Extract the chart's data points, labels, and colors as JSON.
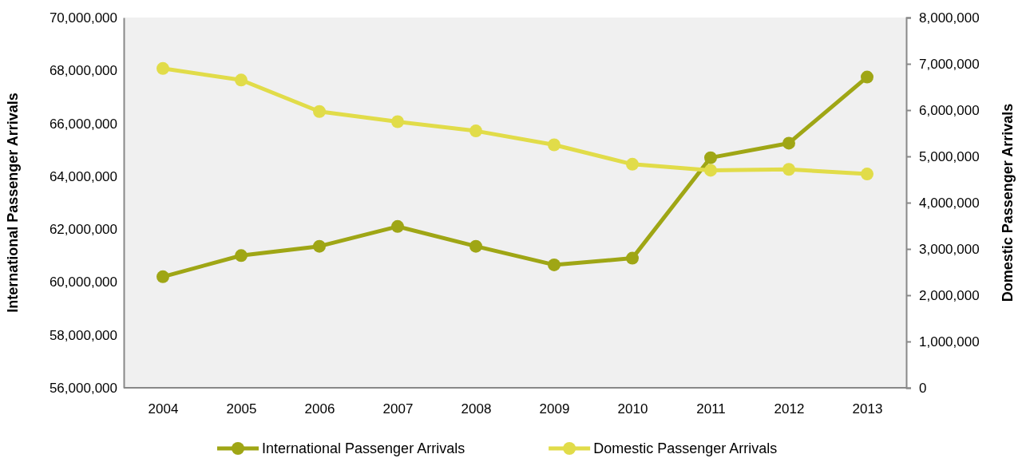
{
  "chart_data": {
    "type": "line",
    "categories": [
      "2004",
      "2005",
      "2006",
      "2007",
      "2008",
      "2009",
      "2010",
      "2011",
      "2012",
      "2013"
    ],
    "ylabel": "International Passenger Arrivals",
    "y2label": "Domestic Passenger Arrivals",
    "series": [
      {
        "name": "International Passenger Arrivals",
        "color": "#9fa615",
        "values": [
          60200000,
          61000000,
          61350000,
          62100000,
          61350000,
          60650000,
          60900000,
          64700000,
          65250000,
          67750000
        ]
      },
      {
        "name": "Domestic Passenger Arrivals",
        "color": "#e1dc49",
        "axis": "y2",
        "values": [
          6900000,
          6650000,
          5970000,
          5750000,
          5550000,
          5250000,
          4830000,
          4700000,
          4720000,
          4620000
        ]
      }
    ],
    "ylim": [
      56000000,
      70000000
    ],
    "yticks": [
      {
        "value": 56000000,
        "label": "56,000,000"
      },
      {
        "value": 58000000,
        "label": "58,000,000"
      },
      {
        "value": 60000000,
        "label": "60,000,000"
      },
      {
        "value": 62000000,
        "label": "62,000,000"
      },
      {
        "value": 64000000,
        "label": "64,000,000"
      },
      {
        "value": 66000000,
        "label": "66,000,000"
      },
      {
        "value": 68000000,
        "label": "68,000,000"
      },
      {
        "value": 70000000,
        "label": "70,000,000"
      }
    ],
    "y2lim": [
      0,
      8000000
    ],
    "y2ticks": [
      0,
      {
        "value": 1000000,
        "label": "1,000,000"
      },
      {
        "value": 2000000,
        "label": "2,000,000"
      },
      {
        "value": 3000000,
        "label": "3,000,000"
      },
      {
        "value": 4000000,
        "label": "4,000,000"
      },
      {
        "value": 5000000,
        "label": "5,000,000"
      },
      {
        "value": 6000000,
        "label": "6,000,000"
      },
      {
        "value": 7000000,
        "label": "7,000,000"
      },
      {
        "value": 8000000,
        "label": "8,000,000"
      }
    ],
    "marker": "circle",
    "legend": "bottom",
    "grid": false
  }
}
